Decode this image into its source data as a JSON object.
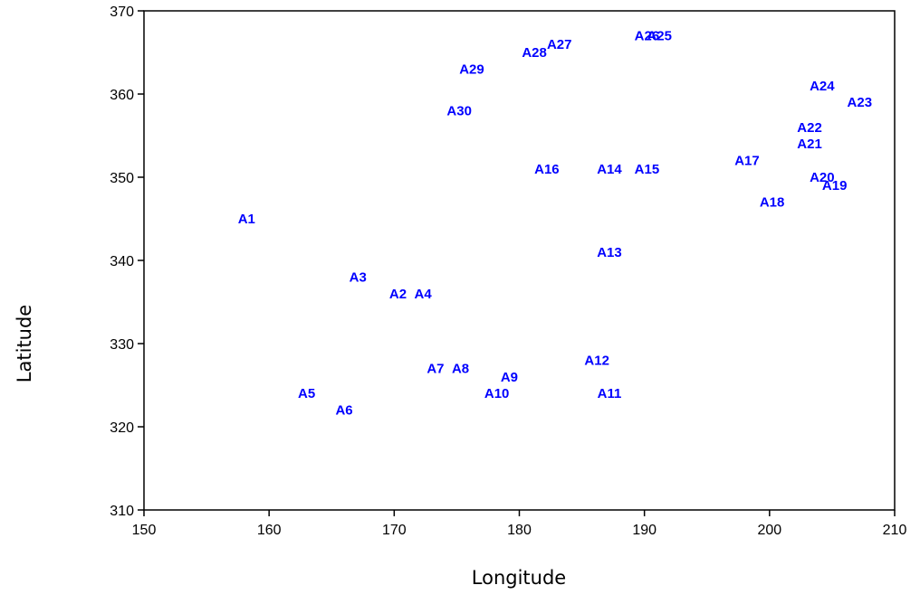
{
  "chart_data": {
    "type": "scatter",
    "title": "",
    "xlabel": "Longitude",
    "ylabel": "Latitude",
    "xlim": [
      150,
      210
    ],
    "ylim": [
      310,
      370
    ],
    "xticks": [
      150,
      160,
      170,
      180,
      190,
      200,
      210
    ],
    "yticks": [
      310,
      320,
      330,
      340,
      350,
      360,
      370
    ],
    "grid": false,
    "label_color": "#0000ff",
    "points": [
      {
        "label": "A1",
        "x": 158.2,
        "y": 345.0
      },
      {
        "label": "A2",
        "x": 170.3,
        "y": 336.0
      },
      {
        "label": "A3",
        "x": 167.1,
        "y": 338.0
      },
      {
        "label": "A4",
        "x": 172.3,
        "y": 336.0
      },
      {
        "label": "A5",
        "x": 163.0,
        "y": 324.0
      },
      {
        "label": "A6",
        "x": 166.0,
        "y": 322.0
      },
      {
        "label": "A7",
        "x": 173.3,
        "y": 327.0
      },
      {
        "label": "A8",
        "x": 175.3,
        "y": 327.0
      },
      {
        "label": "A9",
        "x": 179.2,
        "y": 326.0
      },
      {
        "label": "A10",
        "x": 178.2,
        "y": 324.0
      },
      {
        "label": "A11",
        "x": 187.2,
        "y": 324.0
      },
      {
        "label": "A12",
        "x": 186.2,
        "y": 328.0
      },
      {
        "label": "A13",
        "x": 187.2,
        "y": 341.0
      },
      {
        "label": "A14",
        "x": 187.2,
        "y": 351.0
      },
      {
        "label": "A15",
        "x": 190.2,
        "y": 351.0
      },
      {
        "label": "A16",
        "x": 182.2,
        "y": 351.0
      },
      {
        "label": "A17",
        "x": 198.2,
        "y": 352.0
      },
      {
        "label": "A18",
        "x": 200.2,
        "y": 347.0
      },
      {
        "label": "A19",
        "x": 205.2,
        "y": 349.0
      },
      {
        "label": "A20",
        "x": 204.2,
        "y": 350.0
      },
      {
        "label": "A21",
        "x": 203.2,
        "y": 354.0
      },
      {
        "label": "A22",
        "x": 203.2,
        "y": 356.0
      },
      {
        "label": "A23",
        "x": 207.2,
        "y": 359.0
      },
      {
        "label": "A24",
        "x": 204.2,
        "y": 361.0
      },
      {
        "label": "A25",
        "x": 191.2,
        "y": 367.0
      },
      {
        "label": "A26",
        "x": 190.2,
        "y": 367.0
      },
      {
        "label": "A27",
        "x": 183.2,
        "y": 366.0
      },
      {
        "label": "A28",
        "x": 181.2,
        "y": 365.0
      },
      {
        "label": "A29",
        "x": 176.2,
        "y": 363.0
      },
      {
        "label": "A30",
        "x": 175.2,
        "y": 358.0
      }
    ]
  }
}
